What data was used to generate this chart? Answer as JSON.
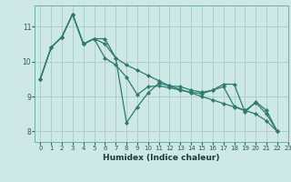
{
  "xlabel": "Humidex (Indice chaleur)",
  "background_color": "#cde8e5",
  "grid_color": "#aacfcc",
  "line_color": "#2d7a6e",
  "xlim": [
    -0.5,
    23
  ],
  "ylim": [
    7.7,
    11.6
  ],
  "yticks": [
    8,
    9,
    10,
    11
  ],
  "xticks": [
    0,
    1,
    2,
    3,
    4,
    5,
    6,
    7,
    8,
    9,
    10,
    11,
    12,
    13,
    14,
    15,
    16,
    17,
    18,
    19,
    20,
    21,
    22,
    23
  ],
  "series": [
    [
      9.5,
      10.4,
      10.7,
      11.35,
      10.5,
      10.65,
      10.65,
      10.1,
      8.25,
      8.7,
      9.1,
      9.38,
      9.3,
      9.28,
      9.18,
      9.12,
      9.18,
      9.35,
      9.35,
      8.55,
      8.85,
      8.6,
      8.0
    ],
    [
      9.5,
      10.4,
      10.7,
      11.35,
      10.5,
      10.65,
      10.1,
      9.9,
      9.55,
      9.05,
      9.28,
      9.3,
      9.25,
      9.18,
      9.12,
      9.08,
      9.18,
      9.28,
      8.72,
      8.6,
      8.82,
      8.5,
      8.0
    ],
    [
      9.5,
      10.4,
      10.7,
      11.35,
      10.5,
      10.65,
      10.5,
      10.1,
      9.9,
      9.75,
      9.6,
      9.45,
      9.3,
      9.2,
      9.1,
      9.0,
      8.9,
      8.8,
      8.7,
      8.6,
      8.5,
      8.3,
      8.0
    ]
  ]
}
